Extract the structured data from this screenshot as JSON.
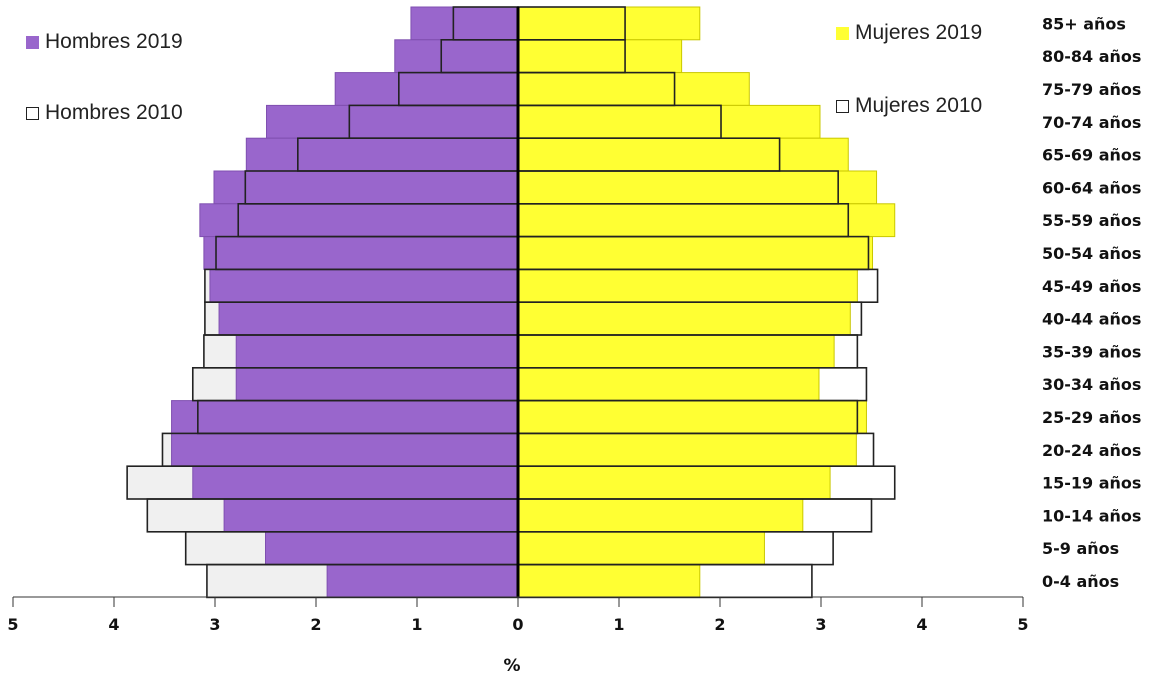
{
  "chart_data": {
    "type": "bar",
    "subtype": "population-pyramid",
    "xlabel": "%",
    "xlim": [
      -5,
      5
    ],
    "x_ticks": [
      "5",
      "4",
      "3",
      "2",
      "1",
      "0",
      "1",
      "2",
      "3",
      "4",
      "5"
    ],
    "categories": [
      "85+ años",
      "80-84 años",
      "75-79 años",
      "70-74 años",
      "65-69 años",
      "60-64 años",
      "55-59 años",
      "50-54 años",
      "45-49 años",
      "40-44 años",
      "35-39 años",
      "30-34 años",
      "25-29 años",
      "20-24 años",
      "15-19 años",
      "10-14 años",
      "5-9 años",
      "0-4 años"
    ],
    "series": [
      {
        "name": "Hombres 2019",
        "side": "left",
        "style": "filled",
        "color": "#9966CC",
        "values": [
          1.06,
          1.22,
          1.81,
          2.49,
          2.69,
          3.01,
          3.15,
          3.11,
          3.05,
          2.96,
          2.79,
          2.79,
          3.43,
          3.43,
          3.22,
          2.91,
          2.5,
          1.89
        ]
      },
      {
        "name": "Mujeres 2019",
        "side": "right",
        "style": "filled",
        "color": "#FFFF33",
        "values": [
          1.8,
          1.62,
          2.29,
          2.99,
          3.27,
          3.55,
          3.73,
          3.51,
          3.36,
          3.29,
          3.13,
          2.98,
          3.45,
          3.35,
          3.09,
          2.82,
          2.44,
          1.8
        ]
      },
      {
        "name": "Hombres 2010",
        "side": "left",
        "style": "outline",
        "color": "#222222",
        "values": [
          0.64,
          0.76,
          1.18,
          1.67,
          2.18,
          2.7,
          2.77,
          2.99,
          3.1,
          3.1,
          3.11,
          3.22,
          3.17,
          3.52,
          3.87,
          3.67,
          3.29,
          3.08
        ]
      },
      {
        "name": "Mujeres 2010",
        "side": "right",
        "style": "outline",
        "color": "#222222",
        "values": [
          1.06,
          1.06,
          1.55,
          2.01,
          2.59,
          3.17,
          3.27,
          3.47,
          3.56,
          3.4,
          3.36,
          3.45,
          3.36,
          3.52,
          3.73,
          3.5,
          3.12,
          2.91
        ]
      }
    ],
    "legend": [
      {
        "label": "Hombres 2019",
        "style": "filled",
        "color": "#9966CC",
        "placement": "top-left"
      },
      {
        "label": "Hombres 2010",
        "style": "outline",
        "color": "#222222",
        "placement": "top-left"
      },
      {
        "label": "Mujeres 2019",
        "style": "filled",
        "color": "#FFFF33",
        "placement": "top-right"
      },
      {
        "label": "Mujeres 2010",
        "style": "outline",
        "color": "#222222",
        "placement": "top-right"
      }
    ],
    "colors": {
      "men_2019": "#9966CC",
      "men_2019_edge": "#7f4fb0",
      "women_2019": "#FFFF33",
      "women_2019_edge": "#c9c700",
      "outline_2010": "#222222",
      "center_line": "#000000"
    }
  }
}
